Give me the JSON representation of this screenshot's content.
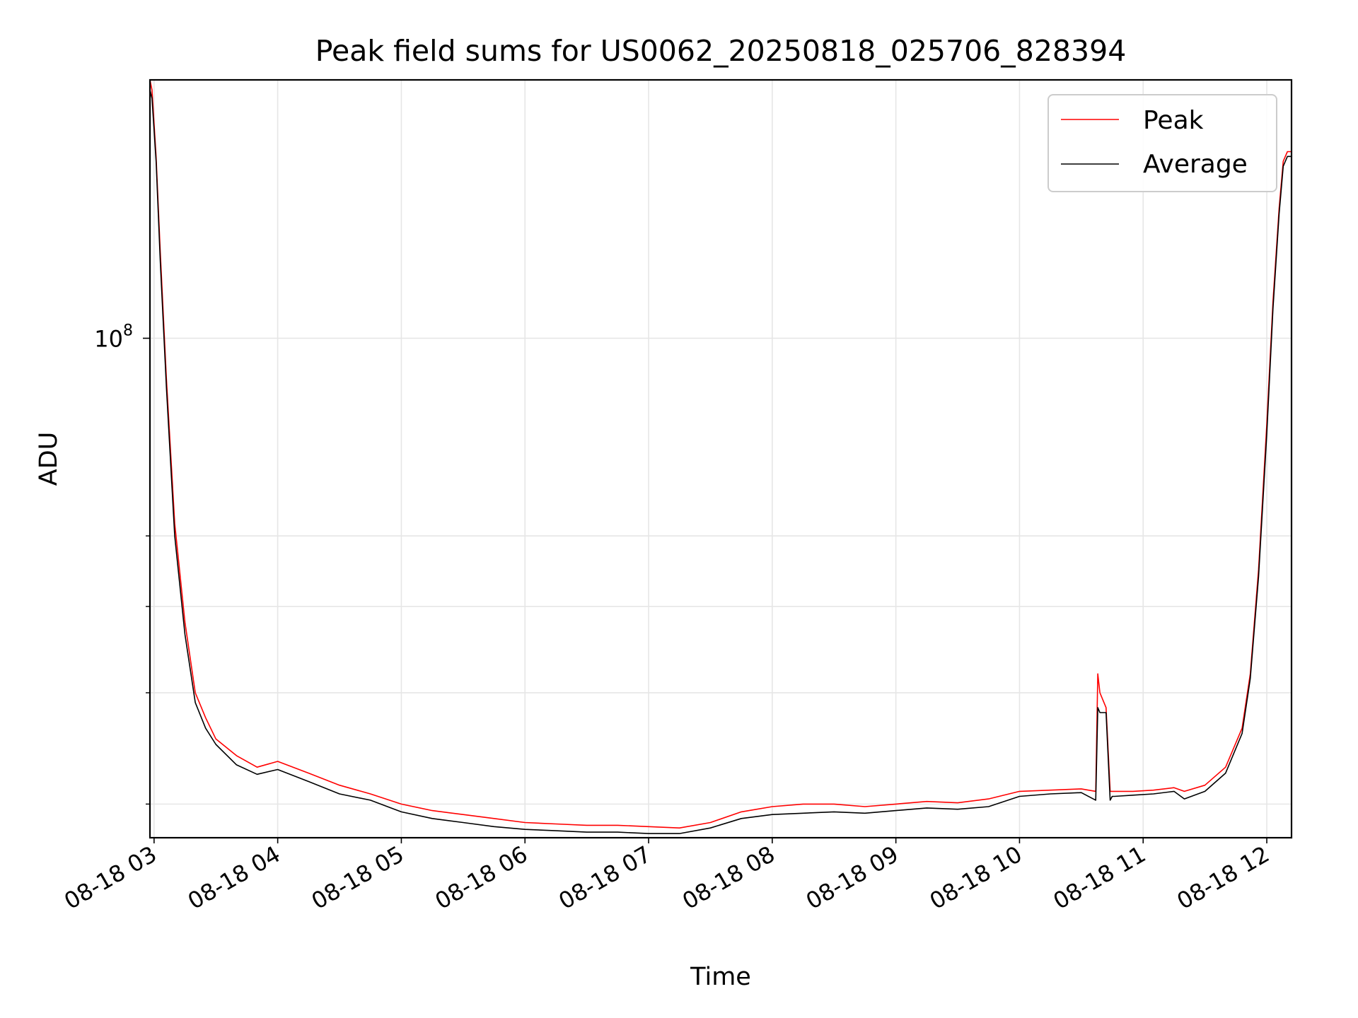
{
  "chart_data": {
    "type": "line",
    "title": "Peak field sums for US0062_20250818_025706_828394",
    "xlabel": "Time",
    "ylabel": "ADU",
    "x_scale": "time",
    "y_scale": "log",
    "grid": true,
    "legend_position": "top-right",
    "xlim": [
      "08-18 02:58",
      "08-18 12:12"
    ],
    "ylim": [
      27500000.0,
      195000000.0
    ],
    "x_tick_labels": [
      "08-18 03",
      "08-18 04",
      "08-18 05",
      "08-18 06",
      "08-18 07",
      "08-18 08",
      "08-18 09",
      "08-18 10",
      "08-18 11",
      "08-18 12"
    ],
    "y_major_ticks": [
      {
        "value": 100000000.0,
        "base": "10",
        "exponent": "8"
      }
    ],
    "y_minor_ticks": [
      30000000.0,
      40000000.0,
      50000000.0,
      60000000.0
    ],
    "x": [
      "08-18 02:58",
      "08-18 02:59",
      "08-18 03:01",
      "08-18 03:03",
      "08-18 03:06",
      "08-18 03:10",
      "08-18 03:15",
      "08-18 03:20",
      "08-18 03:25",
      "08-18 03:30",
      "08-18 03:40",
      "08-18 03:50",
      "08-18 04:00",
      "08-18 04:15",
      "08-18 04:30",
      "08-18 04:45",
      "08-18 05:00",
      "08-18 05:15",
      "08-18 05:30",
      "08-18 05:45",
      "08-18 06:00",
      "08-18 06:15",
      "08-18 06:30",
      "08-18 06:45",
      "08-18 07:00",
      "08-18 07:15",
      "08-18 07:30",
      "08-18 07:45",
      "08-18 08:00",
      "08-18 08:15",
      "08-18 08:30",
      "08-18 08:45",
      "08-18 09:00",
      "08-18 09:15",
      "08-18 09:30",
      "08-18 09:45",
      "08-18 10:00",
      "08-18 10:15",
      "08-18 10:30",
      "08-18 10:37",
      "08-18 10:38",
      "08-18 10:39",
      "08-18 10:42",
      "08-18 10:44",
      "08-18 10:45",
      "08-18 10:46",
      "08-18 10:55",
      "08-18 11:05",
      "08-18 11:15",
      "08-18 11:20",
      "08-18 11:30",
      "08-18 11:40",
      "08-18 11:48",
      "08-18 11:52",
      "08-18 11:56",
      "08-18 12:00",
      "08-18 12:03",
      "08-18 12:06",
      "08-18 12:08",
      "08-18 12:10",
      "08-18 12:12"
    ],
    "series": [
      {
        "name": "Peak",
        "color": "#ff0000",
        "values": [
          195000000,
          190000000,
          160000000,
          125000000,
          90000000,
          62000000,
          48000000,
          40000000,
          37500000,
          35500000,
          34000000,
          33000000,
          33500000,
          32500000,
          31500000,
          30800000,
          30000000,
          29500000,
          29200000,
          28900000,
          28600000,
          28500000,
          28400000,
          28400000,
          28300000,
          28200000,
          28600000,
          29400000,
          29800000,
          30000000,
          30000000,
          29800000,
          30000000,
          30200000,
          30100000,
          30400000,
          31000000,
          31100000,
          31200000,
          31000000,
          42000000,
          40000000,
          38500000,
          31000000,
          31000000,
          31000000,
          31000000,
          31100000,
          31300000,
          31000000,
          31500000,
          33000000,
          36500000,
          42000000,
          55000000,
          80000000,
          110000000,
          140000000,
          158000000,
          162000000,
          162000000
        ]
      },
      {
        "name": "Average",
        "color": "#000000",
        "values": [
          190000000,
          186000000,
          158000000,
          122000000,
          88000000,
          60000000,
          46500000,
          39000000,
          36500000,
          35000000,
          33200000,
          32400000,
          32800000,
          31800000,
          30800000,
          30300000,
          29400000,
          28900000,
          28600000,
          28300000,
          28100000,
          28000000,
          27900000,
          27900000,
          27800000,
          27800000,
          28200000,
          28900000,
          29200000,
          29300000,
          29400000,
          29300000,
          29500000,
          29700000,
          29600000,
          29800000,
          30600000,
          30800000,
          30900000,
          30300000,
          38500000,
          38000000,
          38000000,
          30300000,
          30600000,
          30600000,
          30700000,
          30800000,
          31000000,
          30400000,
          31000000,
          32500000,
          36000000,
          41500000,
          54000000,
          78000000,
          108000000,
          138000000,
          156000000,
          160000000,
          160000000
        ]
      }
    ]
  }
}
